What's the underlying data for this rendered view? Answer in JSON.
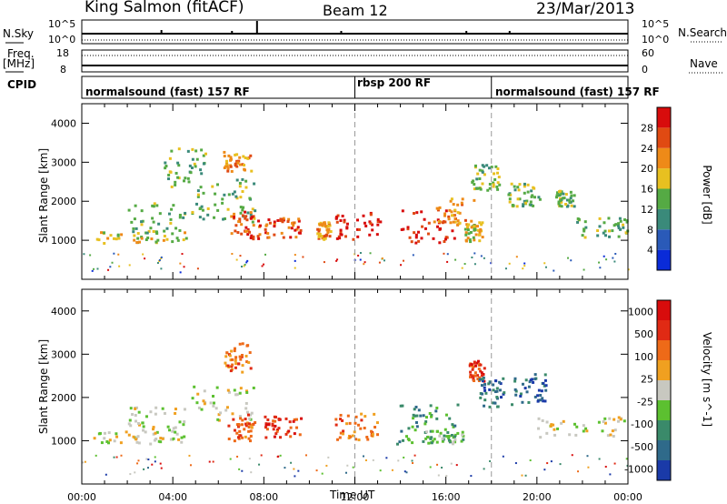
{
  "header": {
    "station": "King Salmon (fitACF)",
    "beam": "Beam 12",
    "date": "23/Mar/2013"
  },
  "top_panels": {
    "nsky_label": "N.Sky",
    "nsky_ticks": [
      "10^5",
      "10^0"
    ],
    "nsearch_label": "N.Search",
    "nsearch_ticks": [
      "10^5",
      "10^0"
    ],
    "freq_label": "Freq.",
    "freq_unit": "[MHz]",
    "freq_ticks": [
      "18",
      "8"
    ],
    "nave_label": "Nave",
    "nave_ticks": [
      "60",
      "0"
    ],
    "cpid_label": "CPID",
    "cpid_segments": [
      {
        "label": "normalsound (fast) 157 RF",
        "start_h": 0,
        "end_h": 12
      },
      {
        "label": "rbsp 200 RF",
        "start_h": 12,
        "end_h": 18
      },
      {
        "label": "normalsound (fast) 157 RF",
        "start_h": 18,
        "end_h": 24
      }
    ]
  },
  "chart_data": [
    {
      "type": "heatmap",
      "name": "power",
      "ylabel": "Slant Range [km]",
      "xlabel": "Time UT",
      "xlim": [
        0,
        24
      ],
      "ylim": [
        0,
        4500
      ],
      "x_ticks": [
        "00:00",
        "04:00",
        "08:00",
        "12:00",
        "16:00",
        "20:00",
        "00:00"
      ],
      "y_ticks": [
        1000,
        2000,
        3000,
        4000
      ],
      "colorbar": {
        "label": "Power [dB]",
        "ticks": [
          4,
          8,
          12,
          16,
          20,
          24,
          28
        ],
        "colors": [
          "#0a2bd8",
          "#2a5ab8",
          "#3a8a7a",
          "#55aa44",
          "#e8c020",
          "#ee8a18",
          "#e04a12",
          "#d80c0c"
        ]
      },
      "echo_regions": [
        {
          "t0": 0.6,
          "t1": 4.6,
          "r0": 950,
          "r1": 1250,
          "level": 4
        },
        {
          "t0": 2.0,
          "t1": 4.5,
          "r0": 1200,
          "r1": 2000,
          "level": 3
        },
        {
          "t0": 3.6,
          "t1": 5.4,
          "r0": 2400,
          "r1": 3400,
          "level": 3
        },
        {
          "t0": 6.2,
          "t1": 7.4,
          "r0": 2800,
          "r1": 3300,
          "level": 5
        },
        {
          "t0": 4.8,
          "t1": 7.6,
          "r0": 1500,
          "r1": 2600,
          "level": 3
        },
        {
          "t0": 6.5,
          "t1": 7.8,
          "r0": 1050,
          "r1": 1800,
          "level": 6
        },
        {
          "t0": 8.0,
          "t1": 9.6,
          "r0": 1100,
          "r1": 1600,
          "level": 6
        },
        {
          "t0": 10.3,
          "t1": 10.9,
          "r0": 1050,
          "r1": 1500,
          "level": 5
        },
        {
          "t0": 11.1,
          "t1": 13.1,
          "r0": 1050,
          "r1": 1750,
          "level": 7
        },
        {
          "t0": 14.0,
          "t1": 16.4,
          "r0": 950,
          "r1": 1800,
          "level": 7
        },
        {
          "t0": 15.4,
          "t1": 17.2,
          "r0": 1400,
          "r1": 2100,
          "level": 5
        },
        {
          "t0": 16.8,
          "t1": 17.6,
          "r0": 1000,
          "r1": 1500,
          "level": 4
        },
        {
          "t0": 17.1,
          "t1": 18.3,
          "r0": 2300,
          "r1": 3000,
          "level": 3
        },
        {
          "t0": 18.7,
          "t1": 20.1,
          "r0": 1900,
          "r1": 2500,
          "level": 3
        },
        {
          "t0": 20.8,
          "t1": 21.6,
          "r0": 1900,
          "r1": 2300,
          "level": 3
        },
        {
          "t0": 21.7,
          "t1": 24.0,
          "r0": 1100,
          "r1": 1600,
          "level": 3
        }
      ]
    },
    {
      "type": "heatmap",
      "name": "velocity",
      "ylabel": "Slant Range [km]",
      "xlabel": "Time UT",
      "xlim": [
        0,
        24
      ],
      "ylim": [
        0,
        4500
      ],
      "x_ticks": [
        "00:00",
        "04:00",
        "08:00",
        "12:00",
        "16:00",
        "20:00",
        "00:00"
      ],
      "y_ticks": [
        1000,
        2000,
        3000,
        4000
      ],
      "colorbar": {
        "label": "Velocity [m s^-1]",
        "ticks": [
          "1000",
          "500",
          "100",
          "25",
          "-25",
          "-100",
          "-500",
          "-1000"
        ],
        "colors": [
          "#1a3aa8",
          "#2f6a8a",
          "#3a8a6a",
          "#5cc030",
          "#c8c8c0",
          "#f0a020",
          "#ee6a18",
          "#e02a14",
          "#d80c0c"
        ]
      },
      "echo_regions": [
        {
          "t0": 0.5,
          "t1": 4.5,
          "r0": 950,
          "r1": 1250,
          "level": 4
        },
        {
          "t0": 2.0,
          "t1": 4.5,
          "r0": 1200,
          "r1": 1800,
          "level": 4
        },
        {
          "t0": 4.8,
          "t1": 7.5,
          "r0": 1500,
          "r1": 2300,
          "level": 4
        },
        {
          "t0": 6.2,
          "t1": 7.4,
          "r0": 2600,
          "r1": 3300,
          "level": 6
        },
        {
          "t0": 6.4,
          "t1": 7.6,
          "r0": 1000,
          "r1": 1700,
          "level": 6
        },
        {
          "t0": 8.0,
          "t1": 9.6,
          "r0": 1100,
          "r1": 1600,
          "level": 7
        },
        {
          "t0": 11.1,
          "t1": 13.0,
          "r0": 1050,
          "r1": 1650,
          "level": 6
        },
        {
          "t0": 13.8,
          "t1": 16.5,
          "r0": 950,
          "r1": 1900,
          "level": 2
        },
        {
          "t0": 14.8,
          "t1": 16.8,
          "r0": 950,
          "r1": 1250,
          "level": 3
        },
        {
          "t0": 17.0,
          "t1": 17.7,
          "r0": 2400,
          "r1": 2900,
          "level": 7
        },
        {
          "t0": 17.4,
          "t1": 18.5,
          "r0": 1800,
          "r1": 2500,
          "level": 1
        },
        {
          "t0": 18.7,
          "t1": 20.4,
          "r0": 1800,
          "r1": 2600,
          "level": 1
        },
        {
          "t0": 20.0,
          "t1": 24.0,
          "r0": 1100,
          "r1": 1600,
          "level": 4
        }
      ]
    }
  ]
}
